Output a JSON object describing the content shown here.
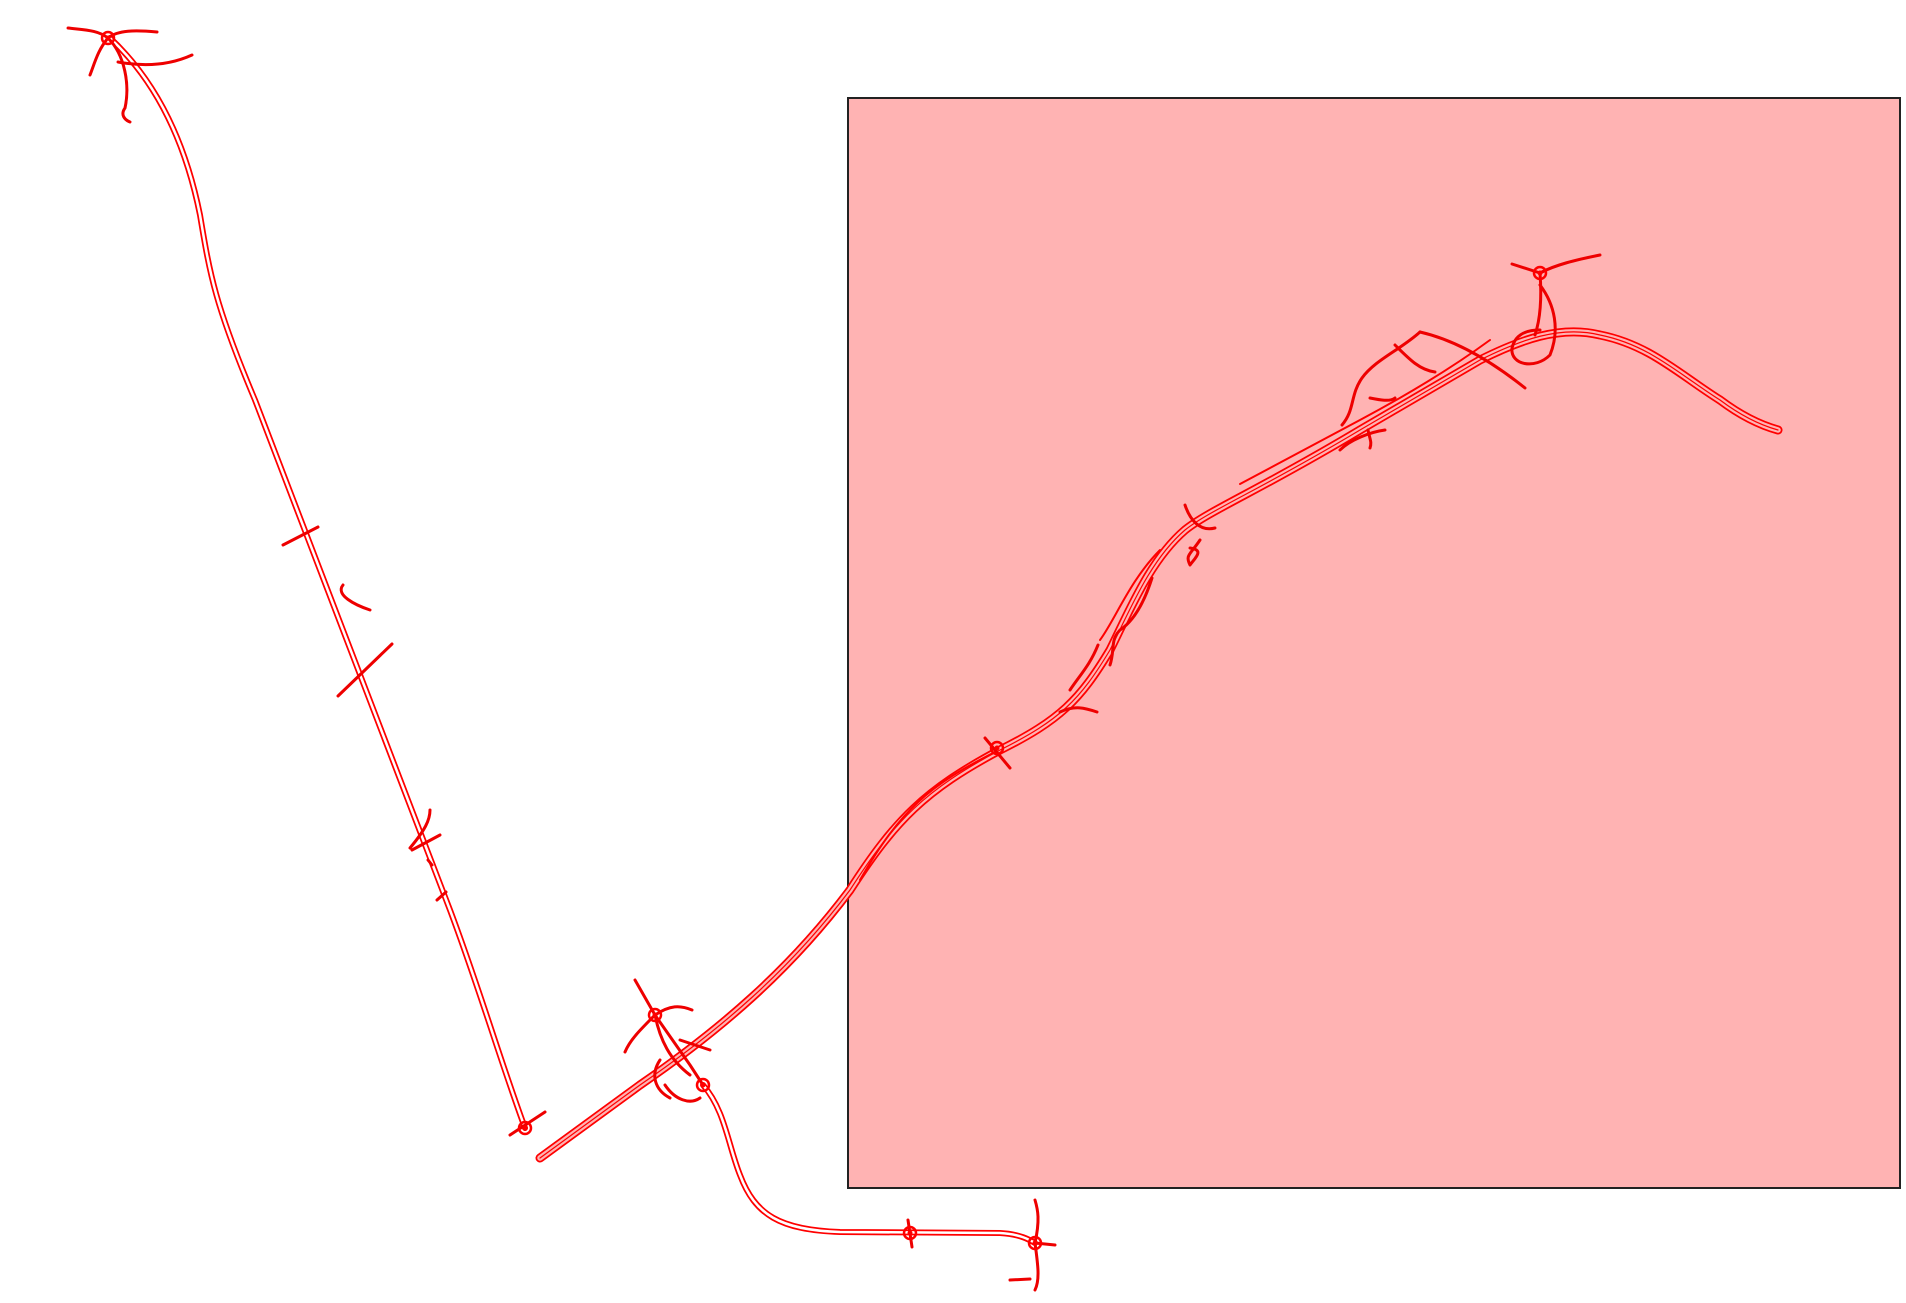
{
  "map": {
    "background_color": "#ffffff",
    "road_color": "#ff0000",
    "highlight": {
      "fill_color": "#ffb3b3",
      "border_color": "#222222",
      "label": ""
    },
    "features": {
      "road_network": "road-network",
      "roundabout": "roundabout-icon",
      "selection_area": "selection-rectangle"
    }
  }
}
